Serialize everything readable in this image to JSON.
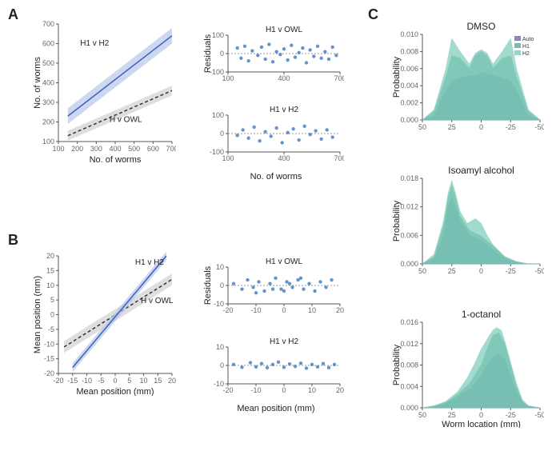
{
  "panels": {
    "A": "A",
    "B": "B",
    "C": "C"
  },
  "colors": {
    "line_h1h2": "#3b5fc0",
    "band_h1h2": "#b9c6ea",
    "line_hg": "#333333",
    "band_hg": "#d0d0d0",
    "scatter": "#4a81c4",
    "axis": "#555555",
    "grid": "#cccccc",
    "kde_auto": "#6a6aa8",
    "kde_h1": "#5fa89e",
    "kde_h2": "#7cccb8",
    "kde_fill_opacity": 0.7
  },
  "A_left": {
    "xlim": [
      100,
      700
    ],
    "ylim": [
      100,
      700
    ],
    "xticks": [
      100,
      200,
      300,
      400,
      500,
      600,
      700
    ],
    "yticks": [
      100,
      200,
      300,
      400,
      500,
      600,
      700
    ],
    "xlabel": "No. of worms",
    "ylabel": "No. of worms",
    "lines": {
      "h1h2": {
        "x1": 150,
        "y1": 230,
        "x2": 700,
        "y2": 640,
        "band": 40,
        "label": "H1 v H2",
        "lx": 215,
        "ly": 590
      },
      "hg": {
        "x1": 150,
        "y1": 130,
        "x2": 700,
        "y2": 360,
        "band": 25,
        "label": "H v OWL",
        "lx": 370,
        "ly": 200,
        "dashed": true
      }
    }
  },
  "A_res_top": {
    "title": "H1 v OWL",
    "xlim": [
      100,
      700
    ],
    "ylim": [
      -100,
      100
    ],
    "yticks": [
      -100,
      0,
      100
    ],
    "xticks": [
      100,
      400,
      700
    ],
    "points": [
      [
        150,
        30
      ],
      [
        170,
        -25
      ],
      [
        190,
        40
      ],
      [
        210,
        -40
      ],
      [
        230,
        15
      ],
      [
        260,
        -10
      ],
      [
        280,
        35
      ],
      [
        300,
        -30
      ],
      [
        320,
        50
      ],
      [
        340,
        -45
      ],
      [
        360,
        10
      ],
      [
        380,
        -5
      ],
      [
        400,
        25
      ],
      [
        420,
        -35
      ],
      [
        440,
        45
      ],
      [
        460,
        -20
      ],
      [
        480,
        5
      ],
      [
        500,
        30
      ],
      [
        520,
        -50
      ],
      [
        540,
        20
      ],
      [
        560,
        -15
      ],
      [
        580,
        40
      ],
      [
        600,
        -25
      ],
      [
        620,
        10
      ],
      [
        640,
        -30
      ],
      [
        660,
        35
      ],
      [
        680,
        -10
      ]
    ]
  },
  "A_res_bot": {
    "title": "H1 v H2",
    "xlim": [
      100,
      700
    ],
    "ylim": [
      -100,
      100
    ],
    "yticks": [
      -100,
      0,
      100
    ],
    "xticks": [
      100,
      400,
      700
    ],
    "points": [
      [
        150,
        -10
      ],
      [
        180,
        20
      ],
      [
        210,
        -25
      ],
      [
        240,
        35
      ],
      [
        270,
        -40
      ],
      [
        300,
        10
      ],
      [
        330,
        -15
      ],
      [
        360,
        30
      ],
      [
        390,
        -50
      ],
      [
        420,
        5
      ],
      [
        450,
        25
      ],
      [
        480,
        -35
      ],
      [
        510,
        40
      ],
      [
        540,
        -5
      ],
      [
        570,
        15
      ],
      [
        600,
        -30
      ],
      [
        630,
        20
      ],
      [
        660,
        -20
      ]
    ]
  },
  "B_left": {
    "xlim": [
      -20,
      20
    ],
    "ylim": [
      -20,
      20
    ],
    "xticks": [
      -20,
      -15,
      -10,
      -5,
      0,
      5,
      10,
      15,
      20
    ],
    "yticks": [
      -20,
      -15,
      -10,
      -5,
      0,
      5,
      10,
      15,
      20
    ],
    "xlabel": "Mean position (mm)",
    "ylabel": "Mean position (mm)",
    "lines": {
      "h1h2": {
        "x1": -15,
        "y1": -18,
        "x2": 18,
        "y2": 20,
        "band": 1.5,
        "label": "H1 v H2",
        "lx": 7,
        "ly": 17
      },
      "hg": {
        "x1": -18,
        "y1": -11,
        "x2": 20,
        "y2": 12,
        "band": 2.0,
        "label": "H v OWL",
        "lx": 9,
        "ly": 4,
        "dashed": true
      }
    }
  },
  "B_res_top": {
    "title": "H1 v OWL",
    "xlim": [
      -20,
      20
    ],
    "ylim": [
      -10,
      10
    ],
    "yticks": [
      -10,
      0,
      10
    ],
    "xticks": [
      -20,
      -10,
      0,
      10,
      20
    ],
    "points": [
      [
        -18,
        1
      ],
      [
        -15,
        -2
      ],
      [
        -13,
        3
      ],
      [
        -11,
        -1
      ],
      [
        -9,
        2
      ],
      [
        -7,
        -3
      ],
      [
        -5,
        1
      ],
      [
        -3,
        4
      ],
      [
        -1,
        -2
      ],
      [
        1,
        2
      ],
      [
        3,
        -1
      ],
      [
        5,
        3
      ],
      [
        7,
        -2
      ],
      [
        9,
        1
      ],
      [
        11,
        -3
      ],
      [
        13,
        2
      ],
      [
        15,
        -1
      ],
      [
        17,
        3
      ],
      [
        -10,
        -4
      ],
      [
        0,
        -3
      ],
      [
        6,
        4
      ],
      [
        -4,
        -2
      ],
      [
        2,
        1
      ]
    ]
  },
  "B_res_bot": {
    "title": "H1 v H2",
    "xlim": [
      -20,
      20
    ],
    "ylim": [
      -10,
      10
    ],
    "yticks": [
      -10,
      0,
      10
    ],
    "xticks": [
      -20,
      -10,
      0,
      10,
      20
    ],
    "points": [
      [
        -18,
        0.5
      ],
      [
        -15,
        -1
      ],
      [
        -12,
        1.5
      ],
      [
        -10,
        -0.8
      ],
      [
        -8,
        1
      ],
      [
        -6,
        -1.2
      ],
      [
        -4,
        0.5
      ],
      [
        -2,
        1.8
      ],
      [
        0,
        -1
      ],
      [
        2,
        0.8
      ],
      [
        4,
        -0.5
      ],
      [
        6,
        1.2
      ],
      [
        8,
        -1.5
      ],
      [
        10,
        0.5
      ],
      [
        12,
        -0.8
      ],
      [
        14,
        1
      ],
      [
        16,
        -1.2
      ],
      [
        18,
        0.5
      ]
    ]
  },
  "C": {
    "xlabel": "Worm location (mm)",
    "ylabel": "Probability",
    "xlim": [
      50,
      -50
    ],
    "xticks": [
      50,
      25,
      0,
      -25,
      -50
    ],
    "legend": [
      "Auto",
      "H1",
      "H2"
    ],
    "plots": [
      {
        "title": "DMSO",
        "ylim": [
          0,
          0.01
        ],
        "yticks": [
          0.0,
          0.002,
          0.004,
          0.006,
          0.008,
          0.01
        ],
        "curves": {
          "auto": [
            [
              50,
              0
            ],
            [
              40,
              0.0005
            ],
            [
              30,
              0.0035
            ],
            [
              25,
              0.0045
            ],
            [
              15,
              0.005
            ],
            [
              5,
              0.0052
            ],
            [
              0,
              0.0055
            ],
            [
              -5,
              0.0054
            ],
            [
              -15,
              0.005
            ],
            [
              -25,
              0.0045
            ],
            [
              -30,
              0.0035
            ],
            [
              -40,
              0.0005
            ],
            [
              -50,
              0
            ]
          ],
          "h1": [
            [
              50,
              0
            ],
            [
              40,
              0.001
            ],
            [
              30,
              0.005
            ],
            [
              25,
              0.0075
            ],
            [
              18,
              0.0072
            ],
            [
              10,
              0.006
            ],
            [
              5,
              0.0075
            ],
            [
              0,
              0.008
            ],
            [
              -5,
              0.0075
            ],
            [
              -10,
              0.006
            ],
            [
              -18,
              0.0072
            ],
            [
              -25,
              0.0075
            ],
            [
              -30,
              0.005
            ],
            [
              -40,
              0.001
            ],
            [
              -50,
              0
            ]
          ],
          "h2": [
            [
              50,
              0
            ],
            [
              40,
              0.0012
            ],
            [
              30,
              0.006
            ],
            [
              25,
              0.0095
            ],
            [
              18,
              0.008
            ],
            [
              10,
              0.0065
            ],
            [
              5,
              0.0078
            ],
            [
              0,
              0.0082
            ],
            [
              -5,
              0.0078
            ],
            [
              -10,
              0.0065
            ],
            [
              -18,
              0.008
            ],
            [
              -25,
              0.0095
            ],
            [
              -30,
              0.006
            ],
            [
              -40,
              0.0012
            ],
            [
              -50,
              0
            ]
          ]
        }
      },
      {
        "title": "Isoamyl alcohol",
        "ylim": [
          0,
          0.018
        ],
        "yticks": [
          0.0,
          0.006,
          0.012,
          0.018
        ],
        "curves": {
          "auto": [
            [
              50,
              0
            ],
            [
              40,
              0.001
            ],
            [
              32,
              0.006
            ],
            [
              28,
              0.012
            ],
            [
              25,
              0.014
            ],
            [
              22,
              0.012
            ],
            [
              18,
              0.009
            ],
            [
              10,
              0.006
            ],
            [
              0,
              0.005
            ],
            [
              -10,
              0.003
            ],
            [
              -20,
              0.001
            ],
            [
              -30,
              0.0003
            ],
            [
              -40,
              0
            ],
            [
              -50,
              0
            ]
          ],
          "h1": [
            [
              50,
              0
            ],
            [
              40,
              0.0015
            ],
            [
              32,
              0.008
            ],
            [
              28,
              0.014
            ],
            [
              25,
              0.0165
            ],
            [
              22,
              0.014
            ],
            [
              18,
              0.01
            ],
            [
              10,
              0.007
            ],
            [
              0,
              0.0058
            ],
            [
              -10,
              0.0038
            ],
            [
              -20,
              0.0015
            ],
            [
              -30,
              0.0004
            ],
            [
              -40,
              0
            ],
            [
              -50,
              0
            ]
          ],
          "h2": [
            [
              50,
              0
            ],
            [
              40,
              0.002
            ],
            [
              32,
              0.009
            ],
            [
              28,
              0.015
            ],
            [
              25,
              0.0175
            ],
            [
              22,
              0.015
            ],
            [
              18,
              0.011
            ],
            [
              12,
              0.0085
            ],
            [
              5,
              0.0095
            ],
            [
              0,
              0.0085
            ],
            [
              -5,
              0.006
            ],
            [
              -10,
              0.004
            ],
            [
              -20,
              0.0015
            ],
            [
              -30,
              0.0005
            ],
            [
              -40,
              0
            ],
            [
              -50,
              0
            ]
          ]
        }
      },
      {
        "title": "1-octanol",
        "ylim": [
          0,
          0.016
        ],
        "yticks": [
          0.0,
          0.004,
          0.008,
          0.012,
          0.016
        ],
        "curves": {
          "auto": [
            [
              50,
              0
            ],
            [
              40,
              0.0002
            ],
            [
              30,
              0.0008
            ],
            [
              20,
              0.002
            ],
            [
              10,
              0.0035
            ],
            [
              0,
              0.006
            ],
            [
              -5,
              0.008
            ],
            [
              -10,
              0.0095
            ],
            [
              -15,
              0.01
            ],
            [
              -20,
              0.009
            ],
            [
              -25,
              0.006
            ],
            [
              -30,
              0.003
            ],
            [
              -35,
              0.001
            ],
            [
              -40,
              0.0002
            ],
            [
              -50,
              0
            ]
          ],
          "h1": [
            [
              50,
              0
            ],
            [
              40,
              0.0003
            ],
            [
              30,
              0.001
            ],
            [
              20,
              0.0025
            ],
            [
              10,
              0.0045
            ],
            [
              0,
              0.008
            ],
            [
              -5,
              0.011
            ],
            [
              -10,
              0.0135
            ],
            [
              -15,
              0.014
            ],
            [
              -20,
              0.012
            ],
            [
              -25,
              0.008
            ],
            [
              -30,
              0.004
            ],
            [
              -35,
              0.0012
            ],
            [
              -40,
              0.0003
            ],
            [
              -50,
              0
            ]
          ],
          "h2": [
            [
              50,
              0
            ],
            [
              40,
              0.0004
            ],
            [
              30,
              0.0012
            ],
            [
              20,
              0.003
            ],
            [
              12,
              0.0055
            ],
            [
              5,
              0.0085
            ],
            [
              0,
              0.011
            ],
            [
              -3,
              0.012
            ],
            [
              -7,
              0.0135
            ],
            [
              -10,
              0.0145
            ],
            [
              -13,
              0.015
            ],
            [
              -17,
              0.0145
            ],
            [
              -20,
              0.0125
            ],
            [
              -25,
              0.0085
            ],
            [
              -30,
              0.0045
            ],
            [
              -35,
              0.0015
            ],
            [
              -40,
              0.0004
            ],
            [
              -50,
              0
            ]
          ]
        }
      }
    ]
  }
}
